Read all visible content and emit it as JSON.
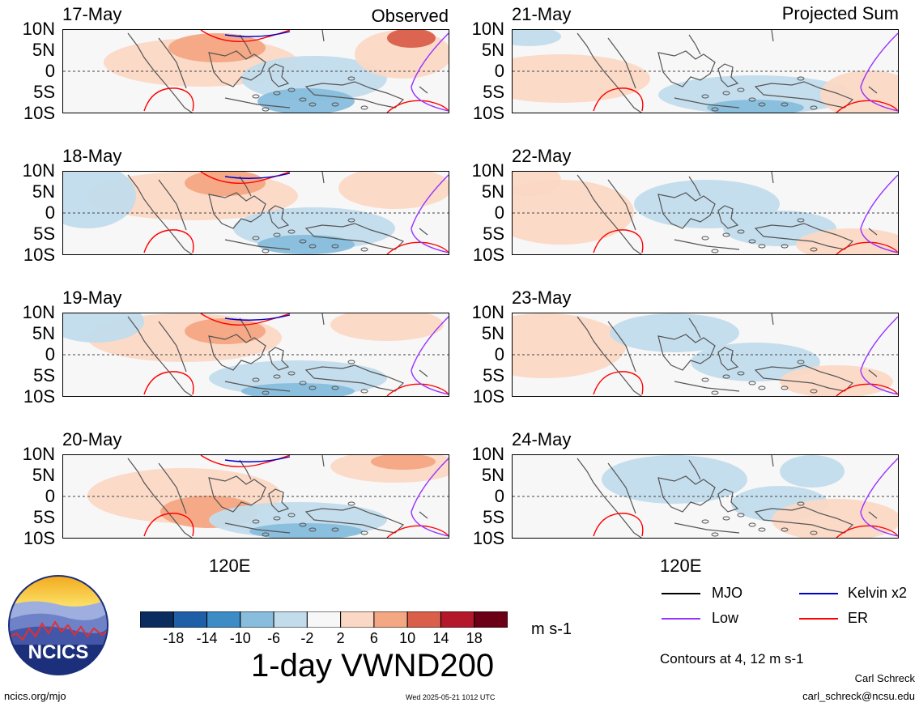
{
  "panels_left_title": "Observed",
  "panels_right_title": "Projected Sum",
  "lat_labels": [
    "10N",
    "5N",
    "0",
    "5S",
    "10S"
  ],
  "left_dates": [
    "17-May",
    "18-May",
    "19-May",
    "20-May"
  ],
  "right_dates": [
    "21-May",
    "22-May",
    "23-May",
    "24-May"
  ],
  "lon_label": "120E",
  "legend": {
    "items": [
      {
        "name": "MJO",
        "color": "#000000"
      },
      {
        "name": "Kelvin x2",
        "color": "#0000cc"
      },
      {
        "name": "Low",
        "color": "#9933ff"
      },
      {
        "name": "ER",
        "color": "#ff0000"
      }
    ],
    "contours_note": "Contours at 4, 12 m s-1"
  },
  "colorbar": {
    "colors": [
      "#0b2c5e",
      "#1f5fa8",
      "#3d8cc6",
      "#88bddd",
      "#c2dcec",
      "#f7f7f7",
      "#fbd8c5",
      "#f4a783",
      "#d95f4a",
      "#b3192b",
      "#6b0016"
    ],
    "ticks": [
      "-18",
      "-14",
      "-10",
      "-6",
      "-2",
      "2",
      "6",
      "10",
      "14",
      "18"
    ],
    "unit": "m s-1"
  },
  "product_title": "1-day VWND200",
  "logo_text": "NCICS",
  "footer": {
    "url": "ncics.org/mjo",
    "timestamp": "Wed 2025-05-21 1012 UTC",
    "author": "Carl Schreck",
    "email": "carl_schreck@ncsu.edu"
  }
}
